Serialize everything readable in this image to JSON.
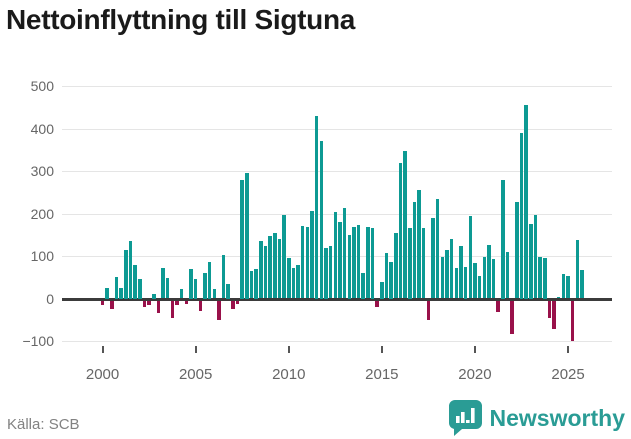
{
  "title": "Nettoinflyttning till Sigtuna",
  "source": "Källa: SCB",
  "brand": {
    "name": "Newsworthy",
    "color": "#2a9c95"
  },
  "colors": {
    "positive_bar": "#0d9a93",
    "negative_bar": "#99114a",
    "gridline": "#e5e5e5",
    "zero_line": "#3b3b3b",
    "axis_text": "#666666",
    "title_text": "#1a1a1a",
    "source_text": "#828282"
  },
  "chart_data": {
    "type": "bar",
    "title": "Nettoinflyttning till Sigtuna",
    "frequency": "quarterly",
    "x_start": "2000 Q1",
    "x_end": "2025 Q4",
    "x_tick_labels": [
      "2000",
      "2005",
      "2010",
      "2015",
      "2020",
      "2025"
    ],
    "yticks": [
      500,
      400,
      300,
      200,
      100,
      0,
      -100
    ],
    "ylim": [
      -130,
      530
    ],
    "grid": true,
    "legend": false,
    "values": [
      -10,
      25,
      -20,
      50,
      25,
      115,
      135,
      80,
      45,
      -15,
      -10,
      10,
      -30,
      72,
      48,
      -40,
      -10,
      22,
      -8,
      70,
      45,
      -25,
      60,
      85,
      22,
      -47,
      103,
      35,
      -20,
      -8,
      280,
      295,
      64,
      70,
      136,
      124,
      147,
      154,
      139,
      197,
      96,
      71,
      79,
      171,
      169,
      207,
      430,
      370,
      120,
      123,
      204,
      179,
      214,
      150,
      169,
      174,
      60,
      168,
      165,
      -15,
      40,
      106,
      85,
      154,
      318,
      347,
      165,
      228,
      256,
      167,
      -45,
      189,
      234,
      98,
      113,
      139,
      71,
      124,
      75,
      193,
      83,
      54,
      98,
      126,
      94,
      -26,
      280,
      109,
      -78,
      226,
      390,
      455,
      175,
      197,
      97,
      95,
      -41,
      -66,
      4,
      58,
      54,
      -95,
      138,
      68
    ]
  }
}
